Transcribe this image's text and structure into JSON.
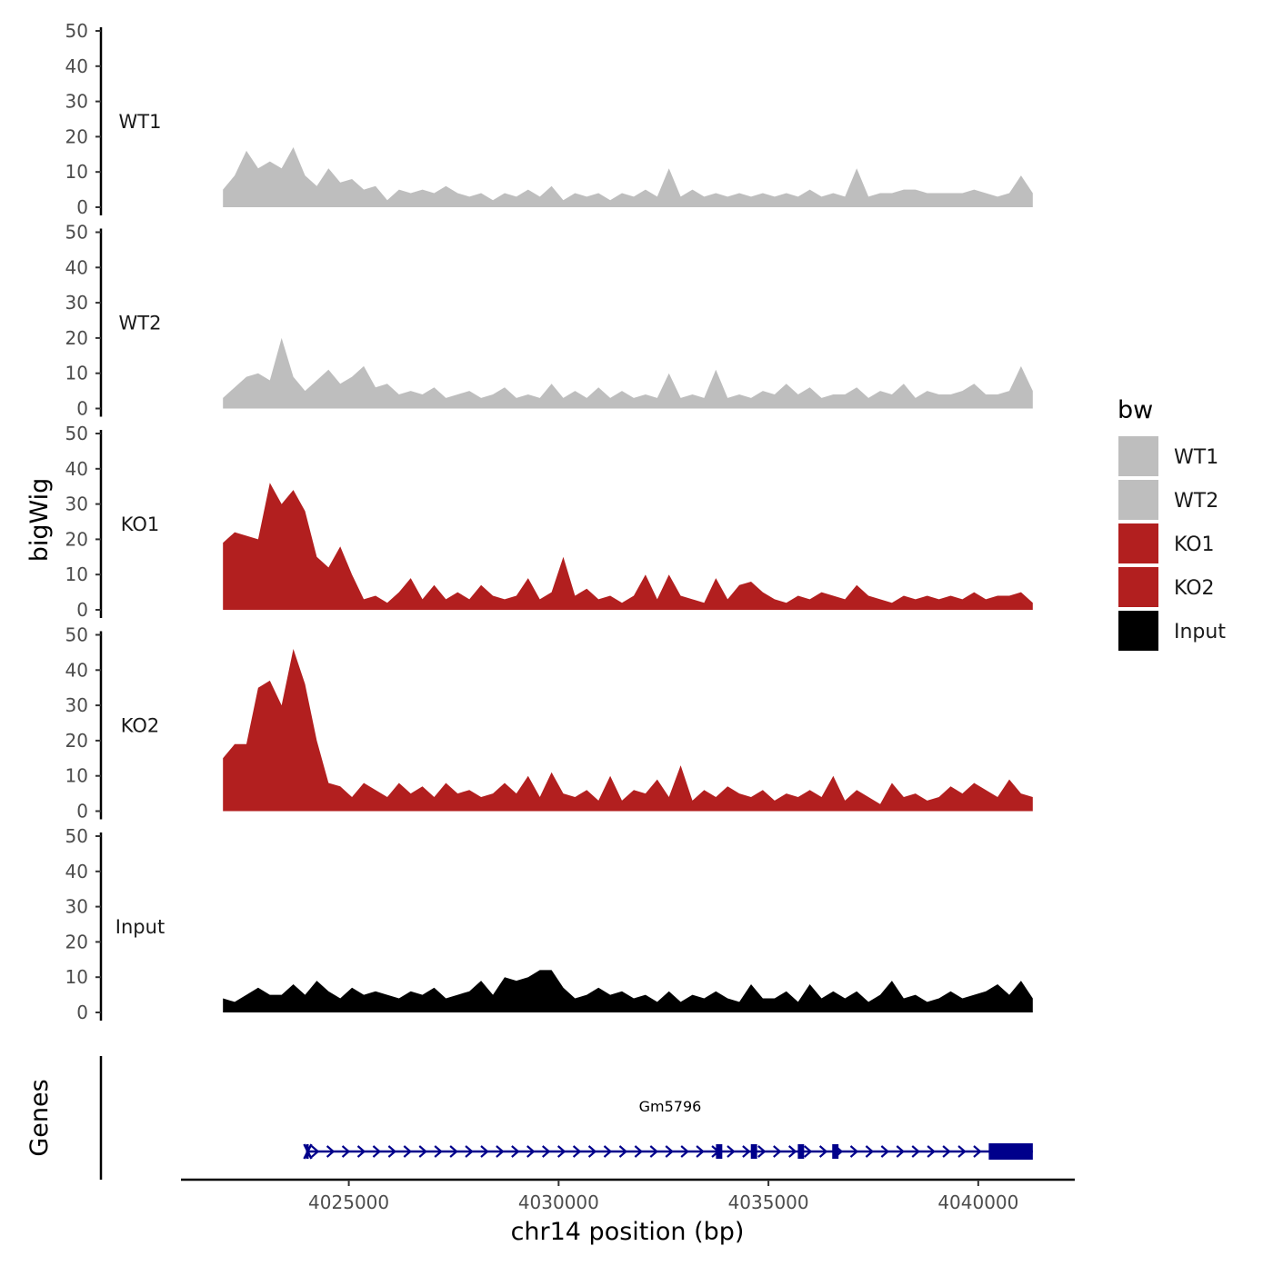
{
  "chart_data": {
    "type": "area",
    "layout": "stacked-tracks",
    "y_axis_title": "bigWig",
    "x_axis_title": "chr14 position (bp)",
    "y_ticks": [
      0,
      10,
      20,
      30,
      40,
      50
    ],
    "ylim": [
      0,
      50
    ],
    "x_ticks": [
      4025000,
      4030000,
      4035000,
      4040000
    ],
    "xlim": [
      4021000,
      4042300
    ],
    "region": [
      4022000,
      4041300
    ],
    "legend": {
      "title": "bw",
      "position": "right",
      "entries": [
        {
          "label": "WT1",
          "color": "#bebebe"
        },
        {
          "label": "WT2",
          "color": "#bebebe"
        },
        {
          "label": "KO1",
          "color": "#b21f1f"
        },
        {
          "label": "KO2",
          "color": "#b21f1f"
        },
        {
          "label": "Input",
          "color": "#000000"
        }
      ]
    },
    "series": [
      {
        "name": "WT1",
        "color": "#bebebe",
        "values": [
          5,
          9,
          16,
          11,
          13,
          11,
          17,
          9,
          6,
          11,
          7,
          8,
          5,
          6,
          2,
          5,
          4,
          5,
          4,
          6,
          4,
          3,
          4,
          2,
          4,
          3,
          5,
          3,
          6,
          2,
          4,
          3,
          4,
          2,
          4,
          3,
          5,
          3,
          11,
          3,
          5,
          3,
          4,
          3,
          4,
          3,
          4,
          3,
          4,
          3,
          5,
          3,
          4,
          3,
          11,
          3,
          4,
          4,
          5,
          5,
          4,
          4,
          4,
          4,
          5,
          4,
          3,
          4,
          9,
          4
        ]
      },
      {
        "name": "WT2",
        "color": "#bebebe",
        "values": [
          3,
          6,
          9,
          10,
          8,
          20,
          9,
          5,
          8,
          11,
          7,
          9,
          12,
          6,
          7,
          4,
          5,
          4,
          6,
          3,
          4,
          5,
          3,
          4,
          6,
          3,
          4,
          3,
          7,
          3,
          5,
          3,
          6,
          3,
          5,
          3,
          4,
          3,
          10,
          3,
          4,
          3,
          11,
          3,
          4,
          3,
          5,
          4,
          7,
          4,
          6,
          3,
          4,
          4,
          6,
          3,
          5,
          4,
          7,
          3,
          5,
          4,
          4,
          5,
          7,
          4,
          4,
          5,
          12,
          5
        ]
      },
      {
        "name": "KO1",
        "color": "#b21f1f",
        "values": [
          19,
          22,
          21,
          20,
          36,
          30,
          34,
          28,
          15,
          12,
          18,
          10,
          3,
          4,
          2,
          5,
          9,
          3,
          7,
          3,
          5,
          3,
          7,
          4,
          3,
          4,
          9,
          3,
          5,
          15,
          4,
          6,
          3,
          4,
          2,
          4,
          10,
          3,
          10,
          4,
          3,
          2,
          9,
          3,
          7,
          8,
          5,
          3,
          2,
          4,
          3,
          5,
          4,
          3,
          7,
          4,
          3,
          2,
          4,
          3,
          4,
          3,
          4,
          3,
          5,
          3,
          4,
          4,
          5,
          2
        ]
      },
      {
        "name": "KO2",
        "color": "#b21f1f",
        "values": [
          15,
          19,
          19,
          35,
          37,
          30,
          46,
          36,
          20,
          8,
          7,
          4,
          8,
          6,
          4,
          8,
          5,
          7,
          4,
          8,
          5,
          6,
          4,
          5,
          8,
          5,
          10,
          4,
          11,
          5,
          4,
          6,
          3,
          10,
          3,
          6,
          5,
          9,
          4,
          13,
          3,
          6,
          4,
          7,
          5,
          4,
          6,
          3,
          5,
          4,
          6,
          4,
          10,
          3,
          6,
          4,
          2,
          8,
          4,
          5,
          3,
          4,
          7,
          5,
          8,
          6,
          4,
          9,
          5,
          4
        ]
      },
      {
        "name": "Input",
        "color": "#000000",
        "values": [
          4,
          3,
          5,
          7,
          5,
          5,
          8,
          5,
          9,
          6,
          4,
          7,
          5,
          6,
          5,
          4,
          6,
          5,
          7,
          4,
          5,
          6,
          9,
          5,
          10,
          9,
          10,
          12,
          12,
          7,
          4,
          5,
          7,
          5,
          6,
          4,
          5,
          3,
          6,
          3,
          5,
          4,
          6,
          4,
          3,
          8,
          4,
          4,
          6,
          3,
          8,
          4,
          6,
          4,
          6,
          3,
          5,
          9,
          4,
          5,
          3,
          4,
          6,
          4,
          5,
          6,
          8,
          5,
          9,
          4
        ]
      }
    ],
    "gene_track": {
      "title": "Genes",
      "gene_name": "Gm5796",
      "strand": "+",
      "color": "#00008b",
      "start": 4024000,
      "end": 4041300,
      "exons": [
        [
          4023980,
          4024020
        ],
        [
          4033750,
          4033900
        ],
        [
          4034580,
          4034730
        ],
        [
          4035700,
          4035850
        ],
        [
          4036520,
          4036670
        ],
        [
          4040250,
          4041300
        ]
      ]
    }
  }
}
